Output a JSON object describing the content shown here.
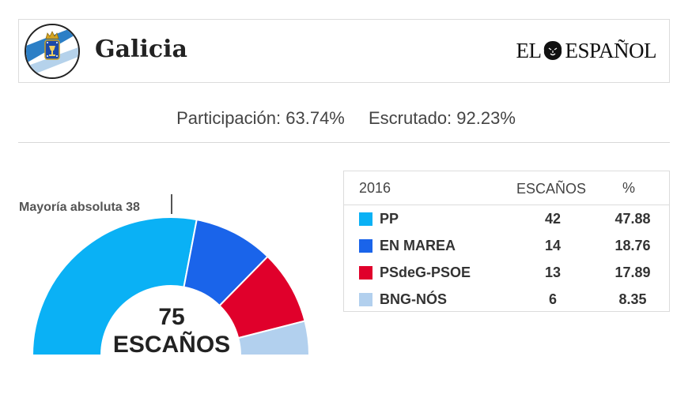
{
  "header": {
    "region": "Galicia",
    "brand_left": "EL",
    "brand_right": "ESPAÑOL",
    "crest_icon": "galicia-coat-of-arms-icon"
  },
  "stats": {
    "participation": "Participación: 63.74%",
    "counted": "Escrutado: 92.23%"
  },
  "majority_label": "Mayoría absoluta 38",
  "total": {
    "number": "75",
    "label": "ESCAÑOS"
  },
  "table": {
    "year": "2016",
    "col_seats": "ESCAÑOS",
    "col_pct": "%"
  },
  "chart_data": {
    "type": "pie",
    "subtype": "half-donut",
    "total_seats": 75,
    "majority": 38,
    "series": [
      {
        "name": "PP",
        "seats": 42,
        "percent": 47.88,
        "color": "#0ab1f5"
      },
      {
        "name": "EN MAREA",
        "seats": 14,
        "percent": 18.76,
        "color": "#1a64ea"
      },
      {
        "name": "PSdeG-PSOE",
        "seats": 13,
        "percent": 17.89,
        "color": "#e0002b"
      },
      {
        "name": "BNG-NÓS",
        "seats": 6,
        "percent": 8.35,
        "color": "#b2d0ee"
      }
    ]
  }
}
